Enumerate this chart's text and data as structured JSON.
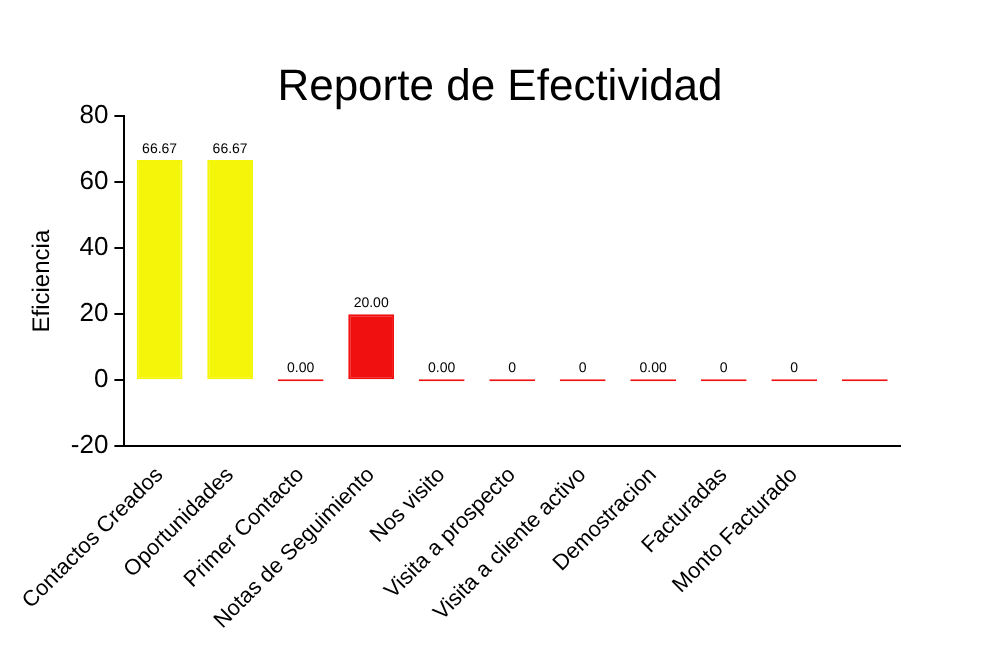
{
  "chart_data": {
    "type": "bar",
    "title": "Reporte de Efectividad",
    "ylabel": "Eficiencia",
    "categories": [
      "Contactos Creados",
      "Oportunidades",
      "Primer Contacto",
      "Notas de Seguimiento",
      "Nos visito",
      "Visita a prospecto",
      "Visita a cliente activo",
      "Demostracion",
      "Facturadas",
      "Monto Facturado",
      null
    ],
    "values": [
      66.67,
      66.67,
      0,
      20,
      0,
      0,
      0,
      0,
      0,
      0,
      0
    ],
    "colors": [
      "#f5f50a",
      "#f5f50a",
      "#f01010",
      "#f01010",
      "#f01010",
      "#f01010",
      "#f01010",
      "#f01010",
      "#f01010",
      "#f01010",
      "#f01010"
    ],
    "value_labels": [
      "66.67",
      "66.67",
      "0.00",
      "20.00",
      "0.00",
      "0",
      "0",
      "0.00",
      "0",
      "0",
      null
    ],
    "ylim": [
      -20,
      80
    ],
    "yticks": [
      -20,
      0,
      20,
      40,
      60,
      80
    ],
    "grid": false,
    "legend": false
  }
}
